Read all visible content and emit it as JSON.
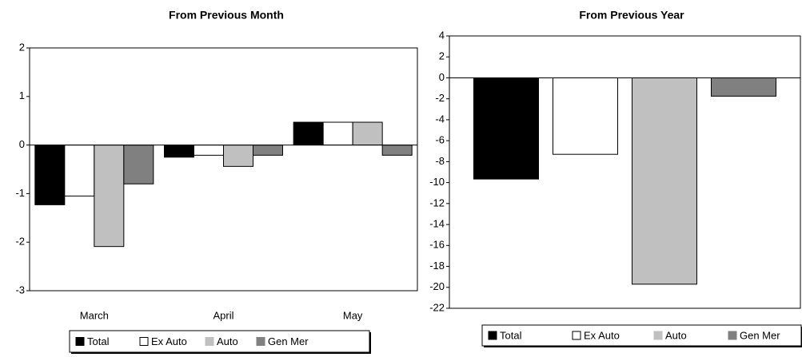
{
  "chart_data": [
    {
      "type": "bar",
      "title": "From Previous Month",
      "categories": [
        "March",
        "April",
        "May"
      ],
      "series": [
        {
          "name": "Total",
          "color": "#000000",
          "values": [
            -1.23,
            -0.25,
            0.47
          ]
        },
        {
          "name": "Ex Auto",
          "color": "#ffffff",
          "values": [
            -1.05,
            -0.21,
            0.47
          ]
        },
        {
          "name": "Auto",
          "color": "#c0c0c0",
          "values": [
            -2.09,
            -0.44,
            0.47
          ]
        },
        {
          "name": "Gen Mer",
          "color": "#808080",
          "values": [
            -0.8,
            -0.21,
            -0.21
          ]
        }
      ],
      "ylim": [
        -3,
        2
      ],
      "yticks": [
        -3,
        -2,
        -1,
        0,
        1,
        2
      ]
    },
    {
      "type": "bar",
      "title": "From Previous Year",
      "categories": [
        null
      ],
      "series": [
        {
          "name": "Total",
          "color": "#000000",
          "values": [
            -9.66
          ]
        },
        {
          "name": "Ex Auto",
          "color": "#ffffff",
          "values": [
            -7.3
          ]
        },
        {
          "name": "Auto",
          "color": "#c0c0c0",
          "values": [
            -19.7
          ]
        },
        {
          "name": "Gen Mer",
          "color": "#808080",
          "values": [
            -1.75
          ]
        }
      ],
      "ylim": [
        -22,
        4
      ],
      "yticks": [
        -22,
        -20,
        -18,
        -16,
        -14,
        -12,
        -10,
        -8,
        -6,
        -4,
        -2,
        0,
        2,
        4
      ]
    }
  ]
}
